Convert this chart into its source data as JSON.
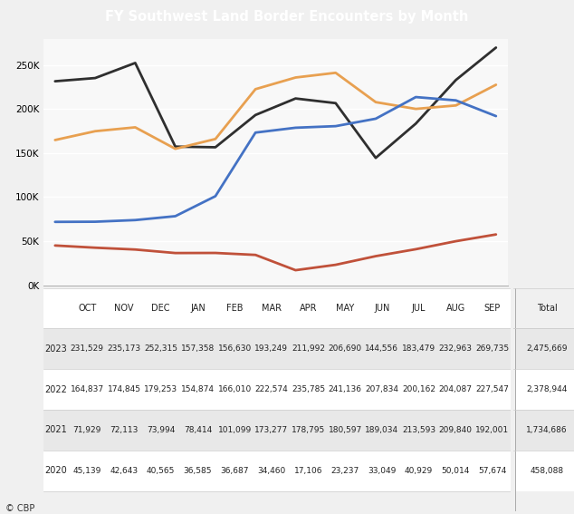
{
  "title": "FY Southwest Land Border Encounters by Month",
  "title_bg": "#1a4b7a",
  "title_color": "white",
  "months": [
    "OCT",
    "NOV",
    "DEC",
    "JAN",
    "FEB",
    "MAR",
    "APR",
    "MAY",
    "JUN",
    "JUL",
    "AUG",
    "SEP"
  ],
  "series": {
    "2023": {
      "values": [
        231529,
        235173,
        252315,
        157358,
        156630,
        193249,
        211992,
        206690,
        144556,
        183479,
        232963,
        269735
      ],
      "color": "#2f2f2f",
      "total": "2,475,669"
    },
    "2022": {
      "values": [
        164837,
        174845,
        179253,
        154874,
        166010,
        222574,
        235785,
        241136,
        207834,
        200162,
        204087,
        227547
      ],
      "color": "#e8a050",
      "total": "2,378,944"
    },
    "2021": {
      "values": [
        71929,
        72113,
        73994,
        78414,
        101099,
        173277,
        178795,
        180597,
        189034,
        213593,
        209840,
        192001
      ],
      "color": "#4472c4",
      "total": "1,734,686"
    },
    "2020": {
      "values": [
        45139,
        42643,
        40565,
        36585,
        36687,
        34460,
        17106,
        23237,
        33049,
        40929,
        50014,
        57674
      ],
      "color": "#c0513a",
      "total": "458,088"
    }
  },
  "years_order": [
    "2023",
    "2022",
    "2021",
    "2020"
  ],
  "ylim": [
    0,
    280000
  ],
  "yticks": [
    0,
    50000,
    100000,
    150000,
    200000,
    250000
  ],
  "ytick_labels": [
    "0K",
    "50K",
    "100K",
    "150K",
    "200K",
    "250K"
  ],
  "background_color": "#f0f0f0",
  "chart_bg": "#f8f8f8",
  "line_width": 2.0,
  "footer_text": "© CBP",
  "table_row_colors": [
    "#ffffff",
    "#e8e8e8"
  ],
  "table_text_color": "#222222",
  "header_row_color": "#ffffff"
}
